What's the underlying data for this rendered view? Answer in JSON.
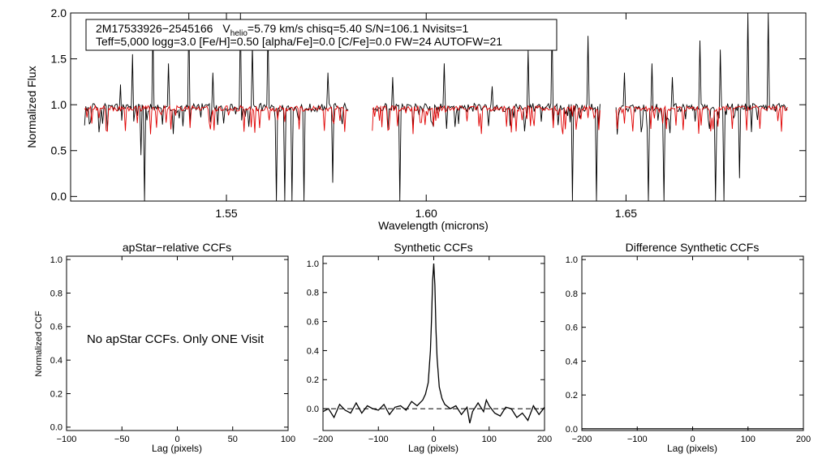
{
  "chart_data": [
    {
      "id": "spectrum",
      "type": "line",
      "title": "",
      "xlabel": "Wavelength (microns)",
      "ylabel": "Normalized Flux",
      "xlim": [
        1.511,
        1.695
      ],
      "ylim": [
        -0.05,
        2.0
      ],
      "xticks": [
        1.55,
        1.6,
        1.65
      ],
      "xtick_labels": [
        "1.55",
        "1.60",
        "1.65"
      ],
      "yticks": [
        0.0,
        0.5,
        1.0,
        1.5,
        2.0
      ],
      "ytick_labels": [
        "0.0",
        "0.5",
        "1.0",
        "1.5",
        "2.0"
      ],
      "segments": [
        [
          1.5145,
          1.5805
        ],
        [
          1.5865,
          1.6435
        ],
        [
          1.6475,
          1.6905
        ]
      ],
      "series": [
        {
          "name": "observed",
          "color": "#000000",
          "continuum": 0.97,
          "noise": 0.045
        },
        {
          "name": "model",
          "color": "#e00000",
          "continuum": 0.96,
          "noise": 0.03
        }
      ],
      "emission_spikes": [
        1.5235,
        1.5265,
        1.5315,
        1.5355,
        1.5405,
        1.5465,
        1.5535,
        1.5565,
        1.5605,
        1.5665,
        1.5755,
        1.5915,
        1.6045,
        1.6165,
        1.6255,
        1.6315,
        1.6405,
        1.6495,
        1.6565,
        1.6615,
        1.6685,
        1.6735,
        1.6805,
        1.6855
      ],
      "spike_heights": [
        1.22,
        1.55,
        1.85,
        1.45,
        2.0,
        1.35,
        2.0,
        1.65,
        1.85,
        2.0,
        1.35,
        1.3,
        1.45,
        1.2,
        1.6,
        1.9,
        1.75,
        1.35,
        1.45,
        1.3,
        1.7,
        1.6,
        2.0,
        2.0
      ],
      "absorption_dips": [
        1.5285,
        1.5295,
        1.5625,
        1.5645,
        1.5665,
        1.5695,
        1.5765,
        1.5935,
        1.6365,
        1.6425,
        1.6555,
        1.6595,
        1.6725,
        1.6745,
        1.6785
      ],
      "dip_depths": [
        0.45,
        -0.05,
        -0.05,
        -0.05,
        -0.05,
        -0.05,
        0.15,
        -0.05,
        -0.05,
        -0.05,
        -0.05,
        -0.05,
        -0.05,
        -0.05,
        0.2
      ],
      "annotation": {
        "line1_object": "2M17533926−2545166",
        "line1_v": "V",
        "line1_v_sub": "helio",
        "line1_rest": "=5.79 km/s  chisq=5.40  S/N=106.1  Nvisits=1",
        "line2": "Teff=5,000 logg=3.0 [Fe/H]=0.50 [alpha/Fe]=0.0 [C/Fe]=0.0 FW=24 AUTOFW=21"
      }
    },
    {
      "id": "apstar_ccf",
      "type": "line",
      "title": "apStar−relative CCFs",
      "xlabel": "Lag (pixels)",
      "ylabel": "Normalized CCF",
      "xlim": [
        -100,
        100
      ],
      "ylim": [
        -0.02,
        1.02
      ],
      "xticks": [
        -100,
        -50,
        0,
        50,
        100
      ],
      "xtick_labels": [
        "−100",
        "−50",
        "0",
        "50",
        "100"
      ],
      "yticks": [
        0.0,
        0.2,
        0.4,
        0.6,
        0.8,
        1.0
      ],
      "ytick_labels": [
        "0.0",
        "0.2",
        "0.4",
        "0.6",
        "0.8",
        "1.0"
      ],
      "message": "No apStar CCFs.  Only ONE Visit",
      "series": []
    },
    {
      "id": "synthetic_ccf",
      "type": "line",
      "title": "Synthetic CCFs",
      "xlabel": "Lag (pixels)",
      "ylabel": "",
      "xlim": [
        -200,
        200
      ],
      "ylim": [
        -0.15,
        1.05
      ],
      "xticks": [
        -200,
        -100,
        0,
        100,
        200
      ],
      "xtick_labels": [
        "−200",
        "−100",
        "0",
        "100",
        "200"
      ],
      "yticks": [
        0.0,
        0.2,
        0.4,
        0.6,
        0.8,
        1.0
      ],
      "ytick_labels": [
        "0.0",
        "0.2",
        "0.4",
        "0.6",
        "0.8",
        "1.0"
      ],
      "zero_line": 0.0,
      "series": [
        {
          "name": "ccf",
          "color": "#000000",
          "x": [
            -200,
            -190,
            -180,
            -170,
            -160,
            -150,
            -140,
            -130,
            -120,
            -110,
            -100,
            -90,
            -80,
            -70,
            -60,
            -50,
            -40,
            -30,
            -20,
            -15,
            -10,
            -6,
            -4,
            -2,
            0,
            2,
            4,
            6,
            10,
            15,
            20,
            30,
            40,
            50,
            60,
            65,
            70,
            80,
            90,
            95,
            100,
            110,
            120,
            130,
            140,
            150,
            160,
            170,
            180,
            190,
            200
          ],
          "y": [
            -0.02,
            0.0,
            -0.06,
            0.03,
            -0.01,
            -0.03,
            0.04,
            -0.03,
            0.02,
            0.0,
            -0.01,
            0.03,
            -0.04,
            0.01,
            0.02,
            -0.01,
            0.05,
            0.02,
            0.06,
            0.1,
            0.18,
            0.4,
            0.62,
            0.88,
            1.0,
            0.85,
            0.55,
            0.35,
            0.15,
            0.07,
            0.03,
            0.0,
            0.02,
            -0.04,
            0.01,
            -0.1,
            -0.02,
            0.04,
            -0.02,
            0.06,
            0.02,
            -0.03,
            -0.05,
            0.01,
            0.0,
            -0.06,
            -0.03,
            -0.08,
            0.02,
            -0.04,
            0.01
          ]
        }
      ]
    },
    {
      "id": "difference_ccf",
      "type": "line",
      "title": "Difference Synthetic CCFs",
      "xlabel": "Lag (pixels)",
      "ylabel": "",
      "xlim": [
        -200,
        200
      ],
      "ylim": [
        -0.01,
        1.02
      ],
      "xticks": [
        -200,
        -100,
        0,
        100,
        200
      ],
      "xtick_labels": [
        "−200",
        "−100",
        "0",
        "100",
        "200"
      ],
      "yticks": [
        0.0,
        0.2,
        0.4,
        0.6,
        0.8,
        1.0
      ],
      "ytick_labels": [
        "0.0",
        "0.2",
        "0.4",
        "0.6",
        "0.8",
        "1.0"
      ],
      "series": [
        {
          "name": "difference",
          "color": "#000000",
          "x": [
            -200,
            200
          ],
          "y": [
            0.0,
            0.0
          ]
        }
      ]
    }
  ]
}
